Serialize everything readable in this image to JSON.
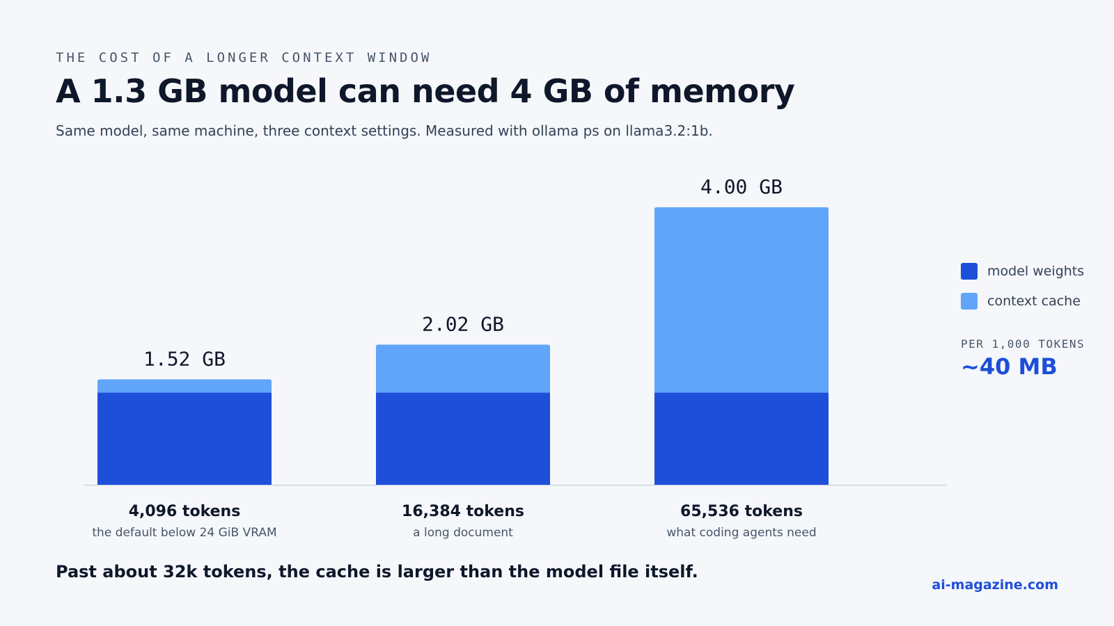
{
  "header": {
    "eyebrow": "THE COST OF A LONGER CONTEXT WINDOW",
    "title": "A 1.3 GB model can need 4 GB of memory",
    "subtitle": "Same model, same machine, three context settings. Measured with ollama ps on llama3.2:1b."
  },
  "legend": {
    "items": [
      {
        "label": "model weights",
        "color": "#1d4fd8"
      },
      {
        "label": "context cache",
        "color": "#60a5fa"
      }
    ]
  },
  "rate": {
    "label": "PER 1,000 TOKENS",
    "value": "~40 MB"
  },
  "footnote": "Past about 32k tokens, the cache is larger than the model file itself.",
  "source": "ai-magazine.com",
  "chart_data": {
    "type": "bar",
    "stacked": true,
    "categories": [
      "4,096 tokens",
      "16,384 tokens",
      "65,536 tokens"
    ],
    "category_notes": [
      "the default below 24 GiB VRAM",
      "a long document",
      "what coding agents need"
    ],
    "totals": [
      "1.52 GB",
      "2.02 GB",
      "4.00 GB"
    ],
    "series": [
      {
        "name": "model weights",
        "color": "#1d4fd8",
        "values": [
          1.33,
          1.33,
          1.33
        ]
      },
      {
        "name": "context cache",
        "color": "#60a5fa",
        "values": [
          0.19,
          0.69,
          2.67
        ]
      }
    ],
    "ylim": [
      0,
      4.0
    ],
    "grid": false,
    "legend_position": "right"
  }
}
